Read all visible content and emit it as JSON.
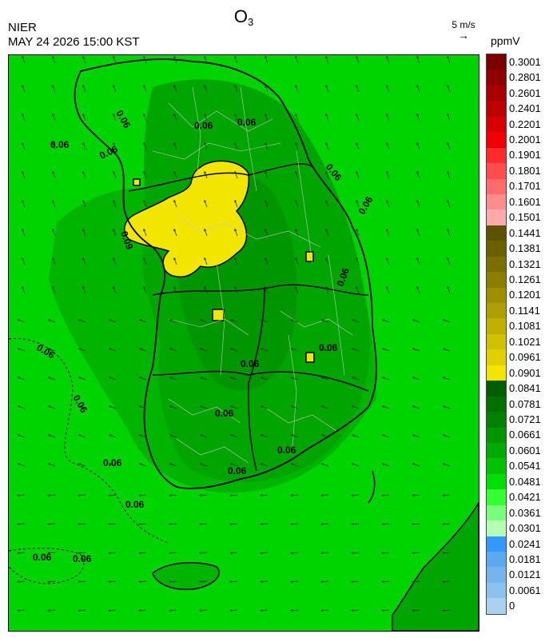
{
  "header": {
    "agency": "NIER",
    "datetime": "MAY 24 2026 15:00 KST",
    "title_main": "O",
    "title_sub": "3",
    "wind_ref_label": "5 m/s",
    "wind_ref_arrow": "→",
    "unit": "ppmV"
  },
  "map": {
    "contour_labels": [
      "0.06",
      "0.06",
      "0.06",
      "0.06",
      "0.06",
      "0.06",
      "0.06",
      "0.06",
      "0.06",
      "0.06",
      "0.06",
      "0.06",
      "0.06",
      "0.06",
      "0.06",
      "0.06",
      "0.06",
      "0.06",
      "0.06"
    ],
    "high_label": "0.09"
  },
  "legend": {
    "levels": [
      {
        "label": "0.3001",
        "color": "#7a0000"
      },
      {
        "label": "0.2801",
        "color": "#8f0000"
      },
      {
        "label": "0.2601",
        "color": "#a60000"
      },
      {
        "label": "0.2401",
        "color": "#bd0000"
      },
      {
        "label": "0.2201",
        "color": "#d60000"
      },
      {
        "label": "0.2001",
        "color": "#f00000"
      },
      {
        "label": "0.1901",
        "color": "#ff2a2a"
      },
      {
        "label": "0.1801",
        "color": "#ff4d4d"
      },
      {
        "label": "0.1701",
        "color": "#ff6b6b"
      },
      {
        "label": "0.1601",
        "color": "#ff8c8c"
      },
      {
        "label": "0.1501",
        "color": "#ffaaaa"
      },
      {
        "label": "0.1441",
        "color": "#5c5200"
      },
      {
        "label": "0.1381",
        "color": "#6b6000"
      },
      {
        "label": "0.1321",
        "color": "#7a6f00"
      },
      {
        "label": "0.1261",
        "color": "#8a7e00"
      },
      {
        "label": "0.1201",
        "color": "#9c8f00"
      },
      {
        "label": "0.1141",
        "color": "#ad9f00"
      },
      {
        "label": "0.1081",
        "color": "#bfb000"
      },
      {
        "label": "0.1021",
        "color": "#cfc000"
      },
      {
        "label": "0.0961",
        "color": "#e0d000"
      },
      {
        "label": "0.0901",
        "color": "#f2e600"
      },
      {
        "label": "0.0841",
        "color": "#005e00"
      },
      {
        "label": "0.0781",
        "color": "#007000"
      },
      {
        "label": "0.0721",
        "color": "#008200"
      },
      {
        "label": "0.0661",
        "color": "#009600"
      },
      {
        "label": "0.0601",
        "color": "#00ab00"
      },
      {
        "label": "0.0541",
        "color": "#00c200"
      },
      {
        "label": "0.0481",
        "color": "#00e000"
      },
      {
        "label": "0.0421",
        "color": "#33ff33"
      },
      {
        "label": "0.0361",
        "color": "#7aff7a"
      },
      {
        "label": "0.0301",
        "color": "#b3ffb3"
      },
      {
        "label": "0.0241",
        "color": "#3399ff"
      },
      {
        "label": "0.0181",
        "color": "#5aaaf0"
      },
      {
        "label": "0.0121",
        "color": "#74b5ee"
      },
      {
        "label": "0.0061",
        "color": "#8cc3ee"
      },
      {
        "label": "0",
        "color": "#a9d2ef"
      }
    ]
  },
  "colors": {
    "background_low": "#00d400",
    "background_mid": "#00b400",
    "high_zone": "#f2e600"
  }
}
